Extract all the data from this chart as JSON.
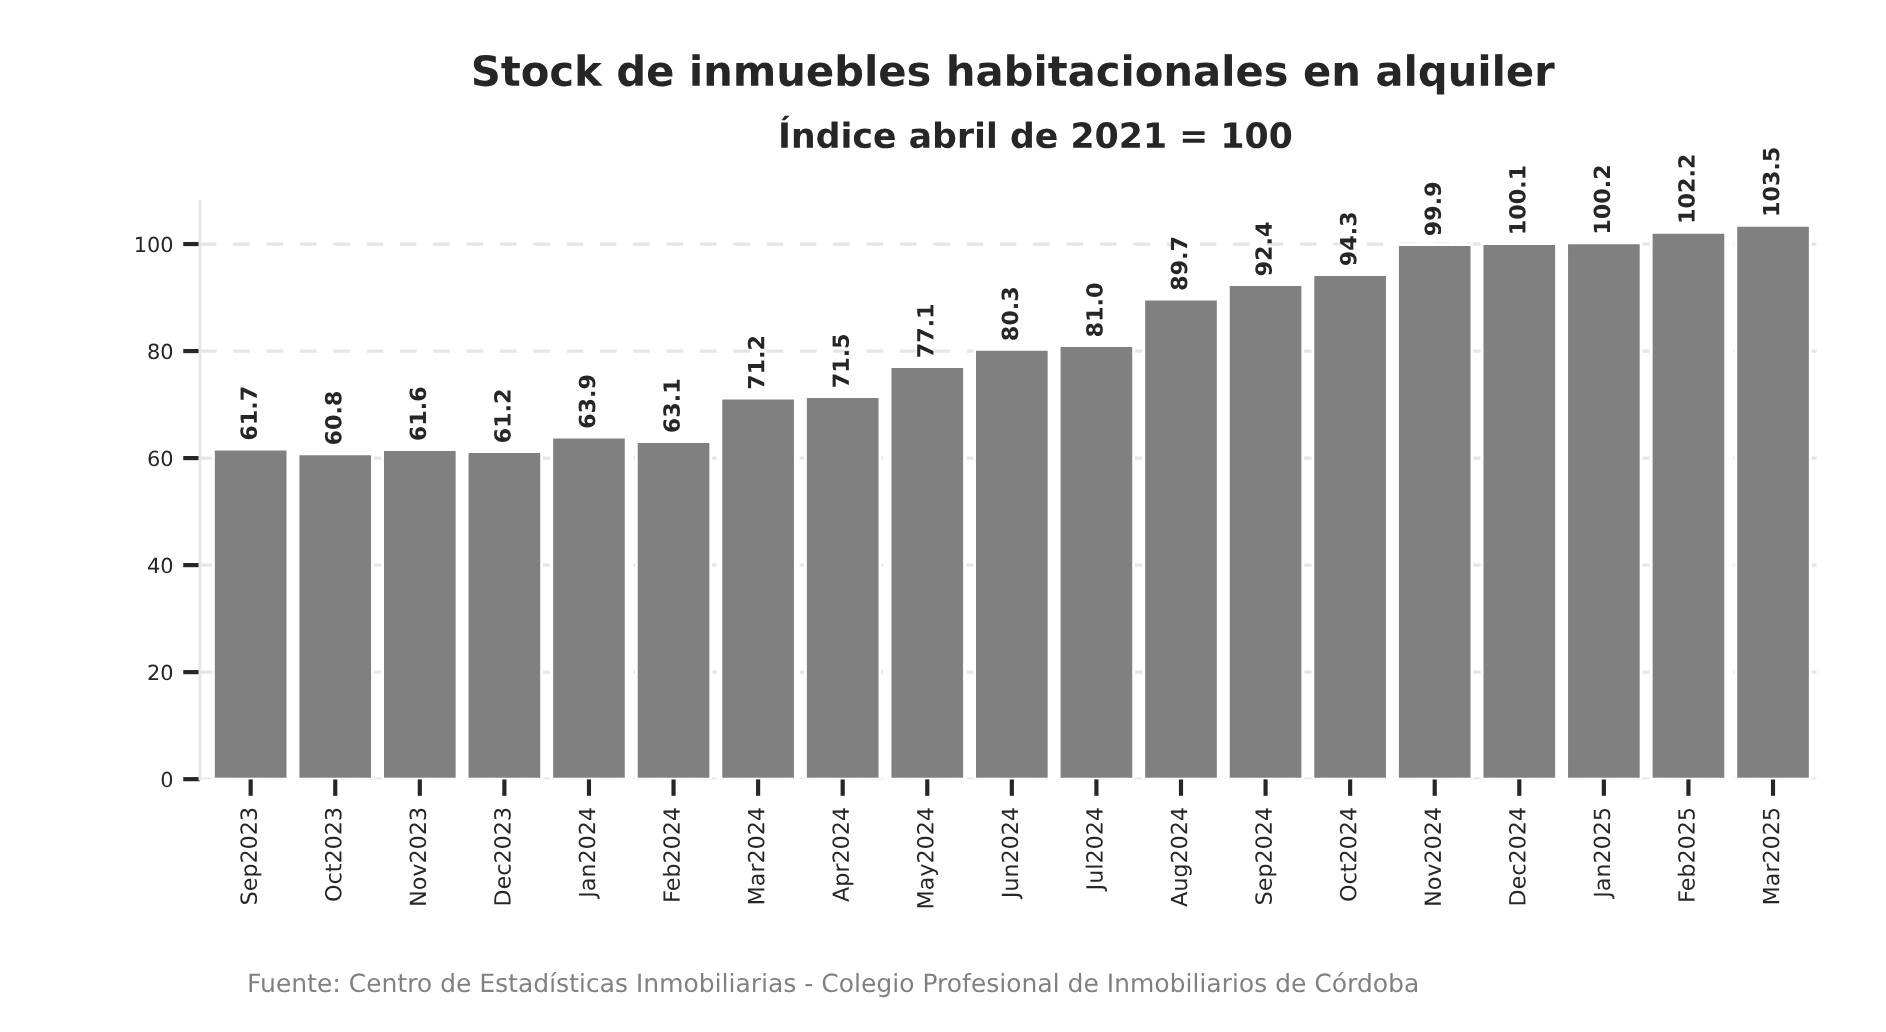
{
  "chart_data": {
    "type": "bar",
    "title": "Stock de inmuebles habitacionales en alquiler",
    "subtitle": "Índice abril de 2021 = 100",
    "categories": [
      "Sep2023",
      "Oct2023",
      "Nov2023",
      "Dec2023",
      "Jan2024",
      "Feb2024",
      "Mar2024",
      "Apr2024",
      "May2024",
      "Jun2024",
      "Jul2024",
      "Aug2024",
      "Sep2024",
      "Oct2024",
      "Nov2024",
      "Dec2024",
      "Jan2025",
      "Feb2025",
      "Mar2025"
    ],
    "values": [
      61.7,
      60.8,
      61.6,
      61.2,
      63.9,
      63.1,
      71.2,
      71.5,
      77.1,
      80.3,
      81.0,
      89.7,
      92.4,
      94.3,
      99.9,
      100.1,
      100.2,
      102.2,
      103.5
    ],
    "value_labels": [
      "61.7",
      "60.8",
      "61.6",
      "61.2",
      "63.9",
      "63.1",
      "71.2",
      "71.5",
      "77.1",
      "80.3",
      "81.0",
      "89.7",
      "92.4",
      "94.3",
      "99.9",
      "100.1",
      "100.2",
      "102.2",
      "103.5"
    ],
    "color": "#808080",
    "ylim": [
      0,
      108
    ],
    "yticks": [
      0,
      20,
      40,
      60,
      80,
      100
    ],
    "grid": "y",
    "legend": false,
    "annotations": [
      "Fuente: Centro de Estadísticas Inmobiliarias - Colegio Profesional de Inmobiliarios de Córdoba"
    ]
  }
}
